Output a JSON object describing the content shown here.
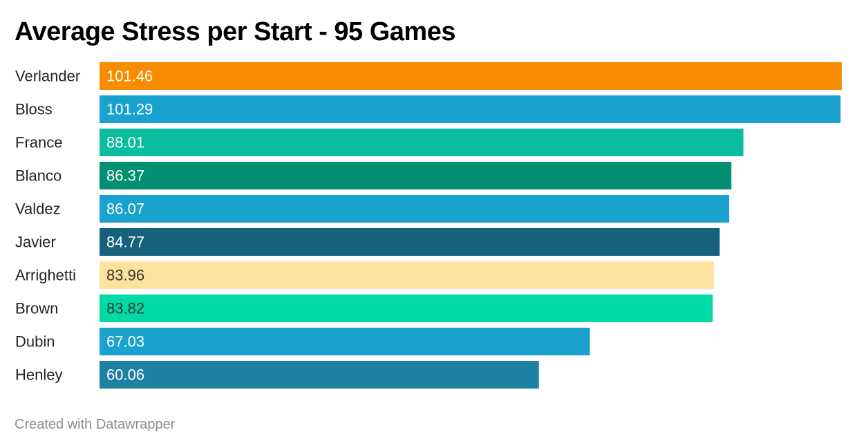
{
  "header": {
    "title": "Average Stress per Start - 95 Games"
  },
  "footer": {
    "credit": "Created with Datawrapper"
  },
  "chart_data": {
    "type": "bar",
    "orientation": "horizontal",
    "title": "Average Stress per Start - 95 Games",
    "xlabel": "",
    "ylabel": "",
    "grid": false,
    "legend": "none",
    "xlim": [
      0,
      101.46
    ],
    "categories": [
      "Verlander",
      "Bloss",
      "France",
      "Blanco",
      "Valdez",
      "Javier",
      "Arrighetti",
      "Brown",
      "Dubin",
      "Henley"
    ],
    "values": [
      101.46,
      101.29,
      88.01,
      86.37,
      86.07,
      84.77,
      83.96,
      83.82,
      67.03,
      60.06
    ],
    "value_labels": [
      "101.46",
      "101.29",
      "88.01",
      "86.37",
      "86.07",
      "84.77",
      "83.96",
      "83.82",
      "67.03",
      "60.06"
    ],
    "colors": [
      "#f78c00",
      "#19a2ce",
      "#0abda0",
      "#008f71",
      "#19a2ce",
      "#16627d",
      "#fee39e",
      "#00dba5",
      "#19a2ce",
      "#1d81a2"
    ],
    "label_colors": [
      "#ffffff",
      "#ffffff",
      "#ffffff",
      "#ffffff",
      "#ffffff",
      "#ffffff",
      "#333333",
      "#333333",
      "#ffffff",
      "#ffffff"
    ]
  }
}
